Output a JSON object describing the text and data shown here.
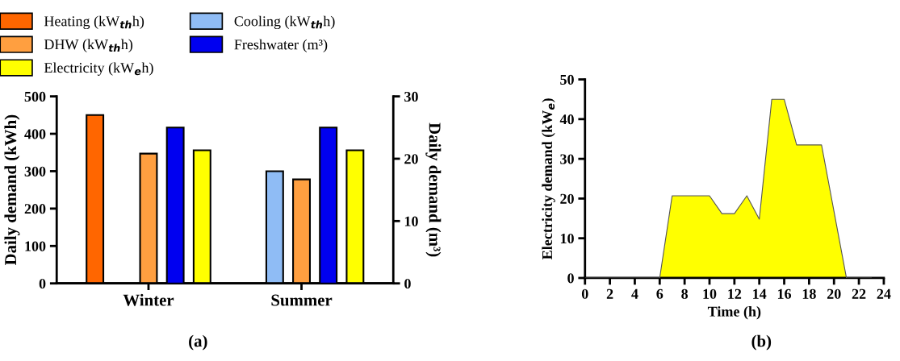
{
  "chart_data": [
    {
      "type": "bar",
      "categories": [
        "Winter",
        "Summer"
      ],
      "ylabel": "Daily demand (kWh)",
      "y2label": "Daily demand (m³)",
      "ylim": [
        0,
        500
      ],
      "yticks": [
        0,
        100,
        200,
        300,
        400,
        500
      ],
      "y2lim": [
        0,
        30
      ],
      "y2ticks": [
        0,
        10,
        20,
        30
      ],
      "legend": "top",
      "grid": false,
      "annotations": [
        "(a)"
      ],
      "series": [
        {
          "name": "Heating (kW$_{th}$h)",
          "color": "#ff6600",
          "values": [
            450,
            null
          ]
        },
        {
          "name": "Cooling (kW$_{th}$h)",
          "color": "#8fbcf5",
          "values": [
            null,
            300
          ]
        },
        {
          "name": "DHW (kW$_{th}$h)",
          "color": "#ff9f40",
          "values": [
            347,
            278
          ]
        },
        {
          "name": "Freshwater (m³)",
          "color": "#0000f0",
          "values": [
            25,
            25
          ],
          "axis": "y2"
        },
        {
          "name": "Electricity (kW$_{e}$h)",
          "color": "#ffff00",
          "values": [
            356,
            356
          ]
        }
      ]
    },
    {
      "type": "area",
      "xlabel": "Time (h)",
      "ylabel": "Electricity demand (kW$_{e}$)",
      "xlim": [
        0,
        24
      ],
      "xticks": [
        0,
        2,
        4,
        6,
        8,
        10,
        12,
        14,
        16,
        18,
        20,
        22,
        24
      ],
      "ylim": [
        0,
        50
      ],
      "yticks": [
        0,
        10,
        20,
        30,
        40,
        50
      ],
      "grid": false,
      "annotations": [
        "(b)"
      ],
      "series": [
        {
          "color": "#ffff00",
          "x": [
            0,
            1,
            2,
            3,
            4,
            5,
            6,
            7,
            8,
            9,
            10,
            11,
            12,
            13,
            14,
            15,
            16,
            17,
            18,
            19,
            21,
            22,
            23
          ],
          "values": [
            0,
            0,
            0,
            0,
            0,
            0,
            0,
            20.7,
            20.7,
            20.7,
            20.7,
            16.2,
            16.2,
            20.7,
            14.8,
            45,
            45,
            33.5,
            33.5,
            33.5,
            0,
            0,
            0
          ]
        }
      ]
    }
  ]
}
